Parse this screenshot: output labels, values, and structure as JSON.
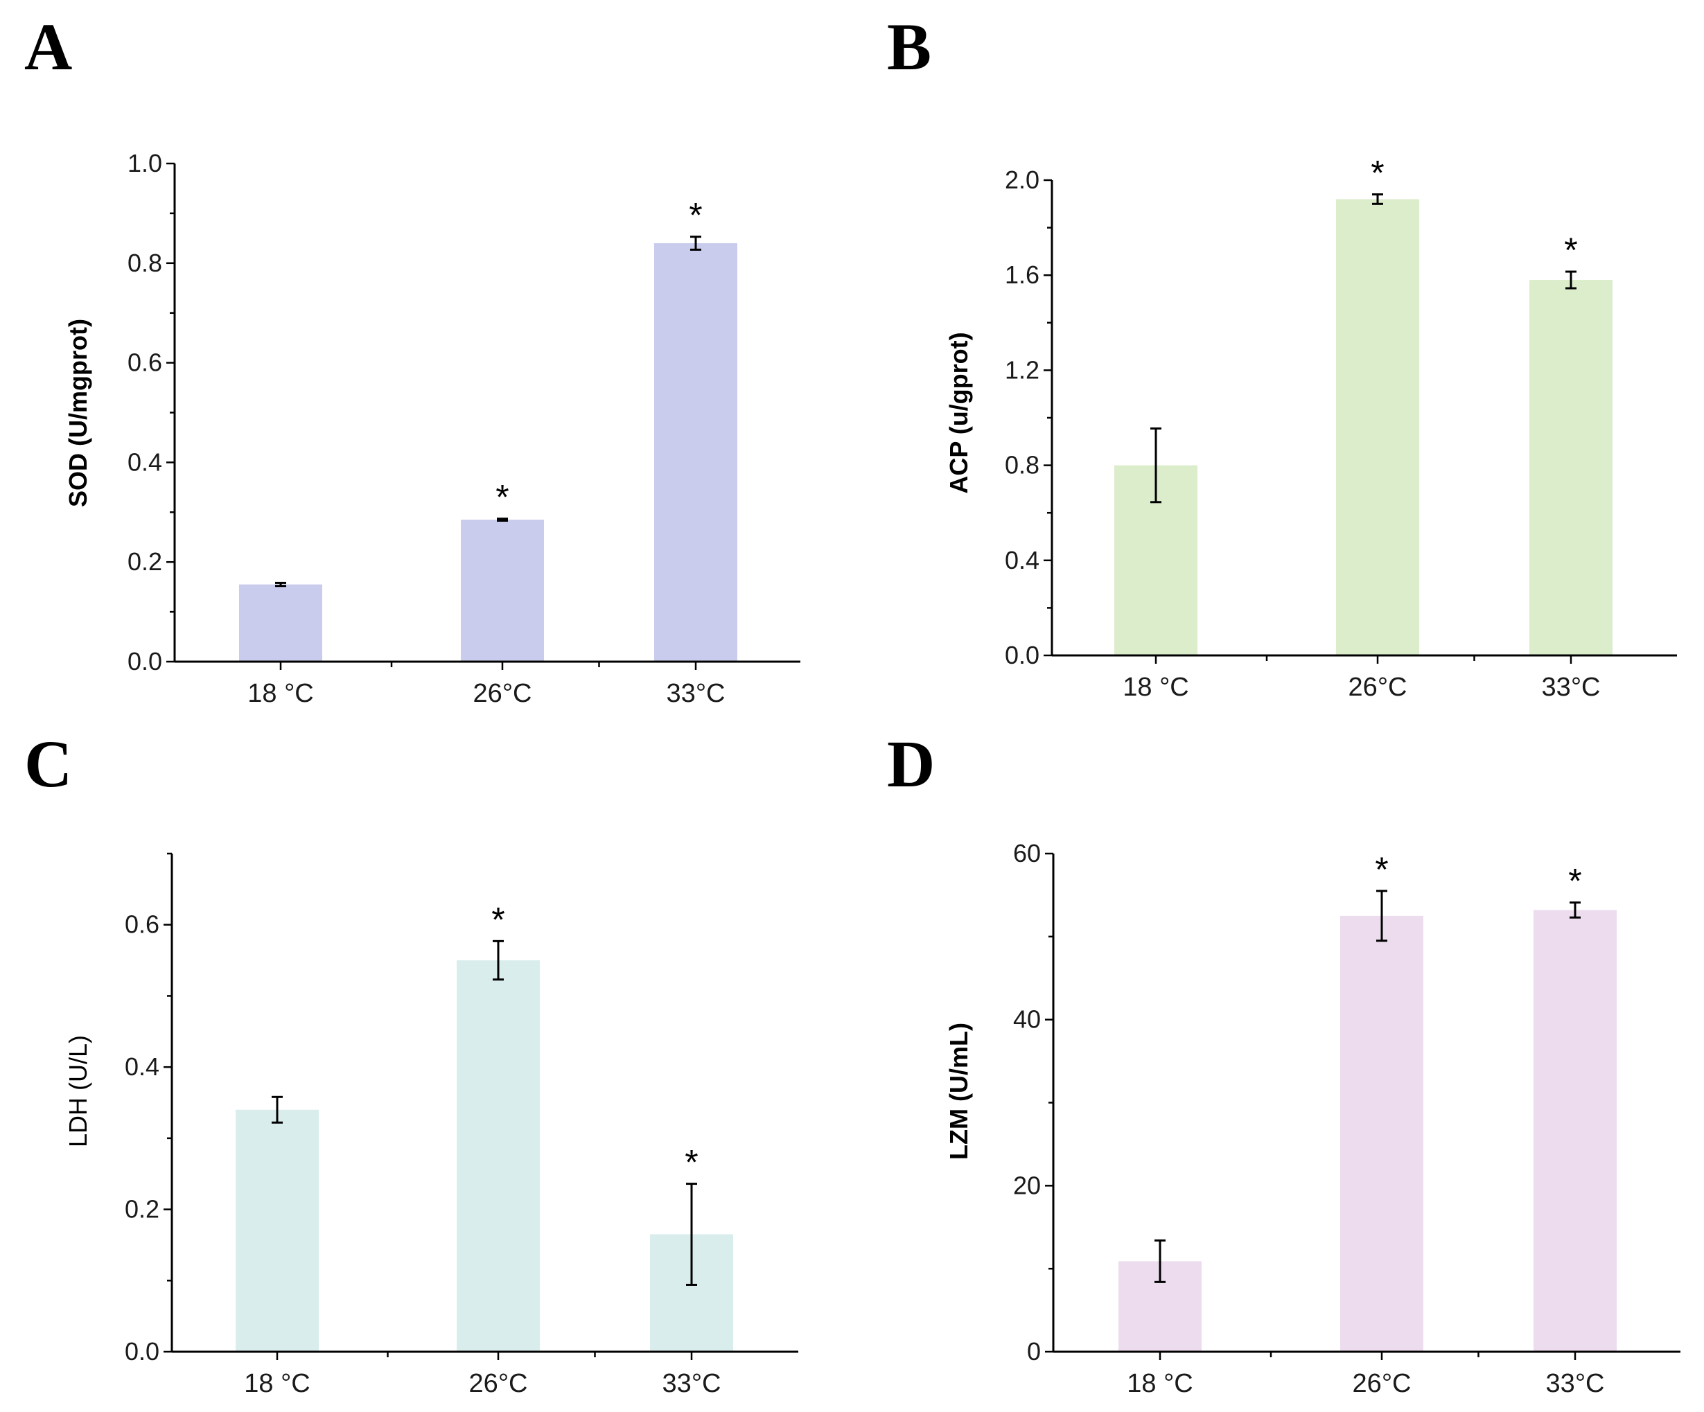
{
  "chart_data": [
    {
      "panel": "A",
      "type": "bar",
      "categories": [
        "18 °C",
        "26°C",
        "33°C"
      ],
      "values": [
        0.155,
        0.285,
        0.84
      ],
      "errors": [
        0.003,
        0.002,
        0.013
      ],
      "significance": [
        "",
        "*",
        "*"
      ],
      "ylabel": "SOD (U/mgprot)",
      "ylabel_bold": true,
      "ylim": [
        0,
        1.0
      ],
      "yticks": [
        "0.0",
        "0.2",
        "0.4",
        "0.6",
        "0.8",
        "1.0"
      ],
      "ytick_values": [
        0,
        0.2,
        0.4,
        0.6,
        0.8,
        1.0
      ],
      "bar_color": "#cacced"
    },
    {
      "panel": "B",
      "type": "bar",
      "categories": [
        "18 °C",
        "26°C",
        "33°C"
      ],
      "values": [
        0.8,
        1.92,
        1.58
      ],
      "errors": [
        0.155,
        0.02,
        0.035
      ],
      "significance": [
        "",
        "*",
        "*"
      ],
      "ylabel": "ACP (u/gprot)",
      "ylabel_bold": true,
      "ylim": [
        0,
        2.0
      ],
      "yticks": [
        "0.0",
        "0.4",
        "0.8",
        "1.2",
        "1.6",
        "2.0"
      ],
      "ytick_values": [
        0,
        0.4,
        0.8,
        1.2,
        1.6,
        2.0
      ],
      "bar_color": "#dcedcb"
    },
    {
      "panel": "C",
      "type": "bar",
      "categories": [
        "18 °C",
        "26°C",
        "33°C"
      ],
      "values": [
        0.34,
        0.55,
        0.165
      ],
      "errors": [
        0.018,
        0.027,
        0.071
      ],
      "significance": [
        "",
        "*",
        "*"
      ],
      "ylabel": "LDH (U/L)",
      "ylabel_bold": false,
      "ylim": [
        0,
        0.7
      ],
      "yticks": [
        "0.0",
        "0.2",
        "0.4",
        "0.6"
      ],
      "ytick_values": [
        0,
        0.2,
        0.4,
        0.6
      ],
      "bar_color": "#d9eded"
    },
    {
      "panel": "D",
      "type": "bar",
      "categories": [
        "18 °C",
        "26°C",
        "33°C"
      ],
      "values": [
        10.9,
        52.5,
        53.2
      ],
      "errors": [
        2.5,
        3.0,
        0.9
      ],
      "significance": [
        "",
        "*",
        "*"
      ],
      "ylabel": "LZM (U/mL)",
      "ylabel_bold": true,
      "ylim": [
        0,
        60
      ],
      "yticks": [
        "0",
        "20",
        "40",
        "60"
      ],
      "ytick_values": [
        0,
        20,
        40,
        60
      ],
      "bar_color": "#ecdcee"
    }
  ]
}
